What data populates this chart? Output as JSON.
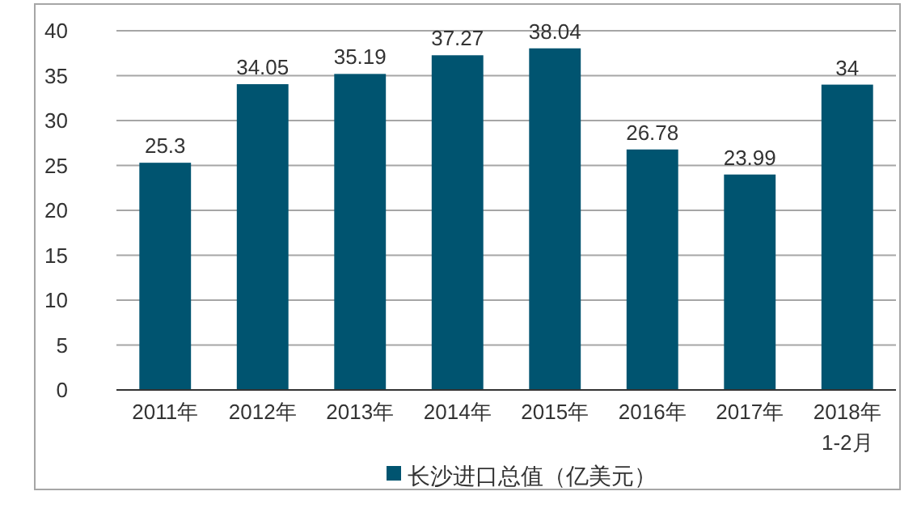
{
  "chart_data": {
    "type": "bar",
    "categories": [
      "2011年",
      "2012年",
      "2013年",
      "2014年",
      "2015年",
      "2016年",
      "2017年",
      "2018年\n1-2月"
    ],
    "series": [
      {
        "name": "长沙进口总值（亿美元）",
        "color": "#005470",
        "values": [
          25.3,
          34.05,
          35.19,
          37.27,
          38.04,
          26.78,
          23.99,
          34
        ]
      }
    ],
    "ylim": [
      0,
      40
    ],
    "yticks": [
      0,
      5,
      10,
      15,
      20,
      25,
      30,
      35,
      40
    ],
    "grid": "y",
    "legend": "bottom",
    "data_labels": true
  }
}
